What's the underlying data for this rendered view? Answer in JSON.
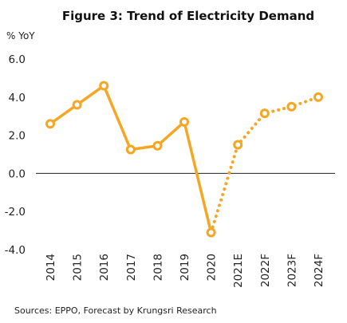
{
  "chart_data": {
    "type": "line",
    "title": "Figure 3: Trend of Electricity Demand",
    "ylabel": "% YoY",
    "ylim": [
      -4.0,
      6.0
    ],
    "yticks": [
      "6.0",
      "4.0",
      "2.0",
      "0.0",
      "-2.0",
      "-4.0"
    ],
    "categories": [
      "2014",
      "2015",
      "2016",
      "2017",
      "2018",
      "2019",
      "2020",
      "2021E",
      "2022F",
      "2023F",
      "2024F"
    ],
    "series": [
      {
        "style": "solid",
        "x": [
          "2014",
          "2015",
          "2016",
          "2017",
          "2018",
          "2019",
          "2020"
        ],
        "values": [
          2.6,
          3.6,
          4.6,
          1.25,
          1.45,
          2.7,
          -3.1
        ]
      },
      {
        "style": "dotted",
        "x": [
          "2020",
          "2021E",
          "2022F",
          "2023F",
          "2024F"
        ],
        "values": [
          -3.1,
          1.5,
          3.15,
          3.5,
          4.0
        ]
      }
    ],
    "grid": false,
    "color": "#F5A623",
    "source": "Sources: EPPO, Forecast by Krungsri Research"
  }
}
